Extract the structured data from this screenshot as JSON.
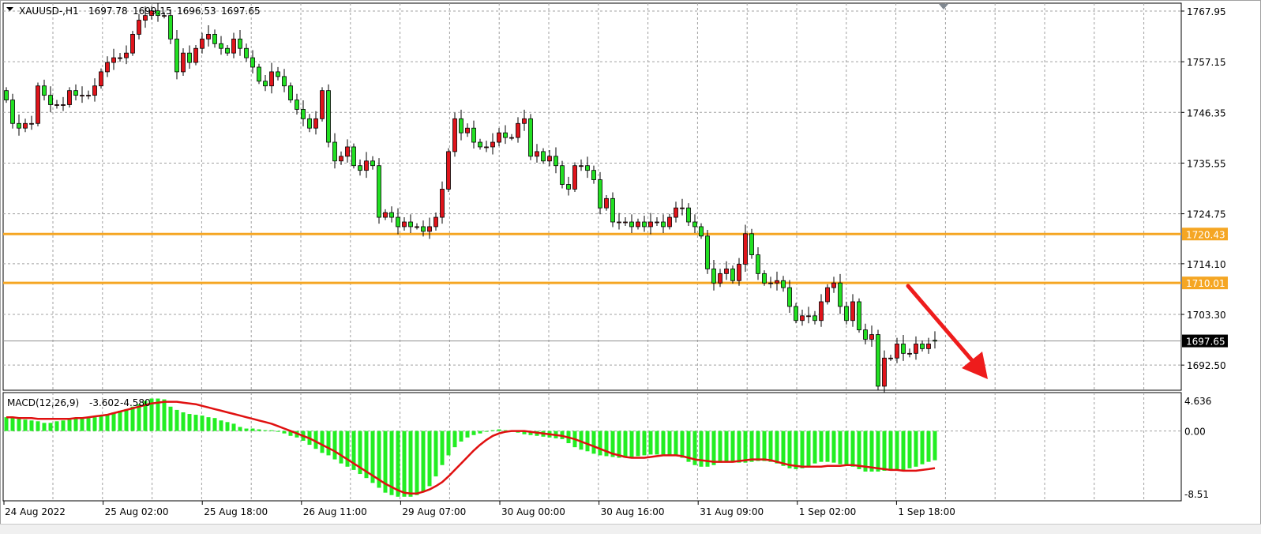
{
  "header": {
    "symbol": "XAUUSD-,H1",
    "open": "1697.78",
    "high": "1699.15",
    "low": "1696.53",
    "close": "1697.65"
  },
  "colors": {
    "bull_candle": "#e0141b",
    "bear_candle": "#22e022",
    "level_line": "#f5a623",
    "macd_histogram": "#22ee22",
    "macd_signal": "#e01010",
    "arrow": "#ee1c1c",
    "current_price_bg": "#000000"
  },
  "chart_data": [
    {
      "type": "candlestick",
      "title": "XAUUSD-,H1",
      "x_tick_labels": [
        "24 Aug 2022",
        "25 Aug 02:00",
        "25 Aug 18:00",
        "26 Aug 11:00",
        "29 Aug 07:00",
        "30 Aug 00:00",
        "30 Aug 16:00",
        "31 Aug 09:00",
        "1 Sep 02:00",
        "1 Sep 18:00"
      ],
      "y_tick_labels": [
        "1767.95",
        "1757.15",
        "1746.35",
        "1735.55",
        "1724.75",
        "1714.10",
        "1703.30",
        "1692.50"
      ],
      "ylim": [
        1691.5,
        1769.0
      ],
      "grid": true,
      "horizontal_levels": [
        {
          "value": 1720.43,
          "label": "1720.43"
        },
        {
          "value": 1710.01,
          "label": "1710.01"
        }
      ],
      "current_price": {
        "value": 1697.65,
        "label": "1697.65"
      },
      "annotation": "arrow-down",
      "open": [
        1751,
        1749,
        1744,
        1743,
        1744,
        1744,
        1752,
        1750,
        1748,
        1748,
        1748,
        1751,
        1750,
        1750,
        1750,
        1752,
        1755,
        1757,
        1758,
        1758,
        1759,
        1763,
        1766,
        1767,
        1768,
        1767,
        1767,
        1762,
        1755,
        1759,
        1757,
        1760,
        1762,
        1763,
        1761,
        1760,
        1759,
        1762,
        1760,
        1758,
        1756,
        1753,
        1752,
        1755,
        1754,
        1752,
        1749,
        1747,
        1745,
        1743,
        1745,
        1751,
        1740,
        1736,
        1737,
        1739,
        1735,
        1734,
        1736,
        1735,
        1724,
        1725,
        1724,
        1722,
        1723,
        1722,
        1722,
        1721,
        1722,
        1724,
        1730,
        1738,
        1745,
        1742,
        1743,
        1740,
        1739,
        1739,
        1740,
        1742,
        1741,
        1741,
        1744,
        1745,
        1737,
        1738,
        1736,
        1737,
        1735,
        1731,
        1730,
        1735,
        1735,
        1734,
        1732,
        1726,
        1728,
        1723,
        1723,
        1723,
        1722,
        1723,
        1722,
        1723,
        1723,
        1722,
        1724,
        1726,
        1726,
        1723,
        1722,
        1720,
        1713,
        1710,
        1712,
        1713,
        1710.5,
        1714,
        1720.5,
        1716,
        1712,
        1710,
        1710,
        1710.5,
        1709,
        1705,
        1702,
        1703,
        1703,
        1702,
        1706,
        1709,
        1710,
        1705,
        1702,
        1706,
        1700,
        1698,
        1699,
        1688,
        1694,
        1694,
        1697,
        1695,
        1695,
        1697,
        1696,
        1697.78
      ],
      "close": [
        1749,
        1744,
        1743,
        1744,
        1744,
        1752,
        1750,
        1748,
        1748,
        1748,
        1751,
        1750,
        1750,
        1750,
        1752,
        1755,
        1757,
        1758,
        1758,
        1759,
        1763,
        1766,
        1767,
        1768,
        1767,
        1767,
        1762,
        1755,
        1759,
        1757,
        1760,
        1762,
        1763,
        1761,
        1760,
        1759,
        1762,
        1760,
        1758,
        1756,
        1753,
        1752,
        1755,
        1754,
        1752,
        1749,
        1747,
        1745,
        1743,
        1745,
        1751,
        1740,
        1736,
        1737,
        1739,
        1735,
        1734,
        1736,
        1735,
        1724,
        1725,
        1724,
        1722,
        1723,
        1722,
        1722,
        1721,
        1722,
        1724,
        1730,
        1738,
        1745,
        1742,
        1743,
        1740,
        1739,
        1739,
        1740,
        1742,
        1741,
        1741,
        1744,
        1745,
        1737,
        1738,
        1736,
        1737,
        1735,
        1731,
        1730,
        1735,
        1735,
        1734,
        1732,
        1726,
        1728,
        1723,
        1723,
        1723,
        1722,
        1723,
        1722,
        1723,
        1723,
        1722,
        1724,
        1726,
        1726,
        1723,
        1722,
        1720,
        1713,
        1710,
        1712,
        1713,
        1710.5,
        1714,
        1720.5,
        1716,
        1712,
        1710,
        1710,
        1710.5,
        1709,
        1705,
        1702,
        1703,
        1703,
        1702,
        1706,
        1709,
        1710,
        1705,
        1702,
        1706,
        1700,
        1698,
        1699,
        1688,
        1694,
        1694,
        1697,
        1695,
        1695,
        1697,
        1696,
        1697,
        1697.65
      ]
    },
    {
      "type": "bar+line",
      "title": "MACD(12,26,9)",
      "main_value": "-3.602",
      "signal_value": "-4.580",
      "y_tick_labels": [
        "4.636",
        "0.00",
        "-8.51"
      ],
      "ylim": [
        -8.51,
        4.636
      ],
      "histogram": [
        1.7,
        1.6,
        1.5,
        1.4,
        1.3,
        1.2,
        1.0,
        1.0,
        1.2,
        1.3,
        1.4,
        1.5,
        1.5,
        1.6,
        1.7,
        1.9,
        2.1,
        2.3,
        2.5,
        2.7,
        3.0,
        3.3,
        3.7,
        4.0,
        4.0,
        3.9,
        3.0,
        2.6,
        2.3,
        2.1,
        2.0,
        1.9,
        1.7,
        1.6,
        1.3,
        1.1,
        0.9,
        0.5,
        0.3,
        0.3,
        0.2,
        0.1,
        0.1,
        -0.1,
        -0.3,
        -0.6,
        -0.8,
        -1.2,
        -1.7,
        -2.2,
        -2.7,
        -3.0,
        -3.5,
        -4.0,
        -4.4,
        -4.8,
        -5.3,
        -5.8,
        -6.4,
        -7.0,
        -7.6,
        -7.9,
        -8.1,
        -8.1,
        -8.1,
        -7.9,
        -7.5,
        -6.8,
        -5.6,
        -4.2,
        -3.0,
        -2.0,
        -1.3,
        -0.8,
        -0.5,
        -0.3,
        -0.1,
        0.1,
        0.2,
        0.1,
        0.0,
        -0.2,
        -0.4,
        -0.5,
        -0.6,
        -0.7,
        -0.8,
        -0.9,
        -1.0,
        -1.5,
        -2.0,
        -2.3,
        -2.5,
        -2.8,
        -3.0,
        -3.1,
        -3.2,
        -3.3,
        -3.3,
        -3.2,
        -3.1,
        -3.0,
        -2.9,
        -2.9,
        -2.9,
        -3.0,
        -3.1,
        -3.3,
        -3.8,
        -4.2,
        -4.4,
        -4.4,
        -4.2,
        -3.9,
        -3.8,
        -3.8,
        -3.9,
        -3.9,
        -3.8,
        -3.7,
        -3.7,
        -3.8,
        -4.0,
        -4.3,
        -4.6,
        -4.7,
        -4.6,
        -4.3,
        -4.0,
        -3.8,
        -3.8,
        -3.9,
        -4.1,
        -4.2,
        -4.4,
        -4.7,
        -5.0,
        -5.0,
        -5.0,
        -4.9,
        -4.9,
        -4.9,
        -4.8,
        -4.6,
        -4.4,
        -4.1,
        -3.8,
        -3.602
      ],
      "signal": [
        1.7,
        1.7,
        1.6,
        1.6,
        1.6,
        1.5,
        1.5,
        1.5,
        1.5,
        1.5,
        1.5,
        1.6,
        1.6,
        1.7,
        1.8,
        1.9,
        2.0,
        2.2,
        2.4,
        2.6,
        2.8,
        3.0,
        3.2,
        3.4,
        3.5,
        3.6,
        3.6,
        3.6,
        3.5,
        3.4,
        3.3,
        3.1,
        2.9,
        2.7,
        2.5,
        2.3,
        2.1,
        1.9,
        1.7,
        1.5,
        1.3,
        1.1,
        0.9,
        0.6,
        0.3,
        0.0,
        -0.3,
        -0.6,
        -0.9,
        -1.3,
        -1.7,
        -2.1,
        -2.5,
        -3.0,
        -3.5,
        -4.0,
        -4.5,
        -5.0,
        -5.5,
        -6.0,
        -6.5,
        -6.9,
        -7.3,
        -7.6,
        -7.7,
        -7.7,
        -7.5,
        -7.2,
        -6.8,
        -6.3,
        -5.6,
        -4.8,
        -4.0,
        -3.2,
        -2.4,
        -1.7,
        -1.1,
        -0.6,
        -0.3,
        -0.1,
        0.0,
        0.0,
        0.0,
        -0.1,
        -0.2,
        -0.3,
        -0.4,
        -0.5,
        -0.6,
        -0.8,
        -1.0,
        -1.3,
        -1.6,
        -1.9,
        -2.2,
        -2.5,
        -2.8,
        -3.0,
        -3.2,
        -3.3,
        -3.3,
        -3.3,
        -3.2,
        -3.1,
        -3.0,
        -3.0,
        -3.0,
        -3.1,
        -3.3,
        -3.5,
        -3.6,
        -3.7,
        -3.8,
        -3.8,
        -3.8,
        -3.8,
        -3.7,
        -3.6,
        -3.5,
        -3.5,
        -3.5,
        -3.6,
        -3.8,
        -4.0,
        -4.2,
        -4.3,
        -4.4,
        -4.4,
        -4.4,
        -4.4,
        -4.3,
        -4.3,
        -4.3,
        -4.2,
        -4.2,
        -4.3,
        -4.4,
        -4.5,
        -4.6,
        -4.7,
        -4.8,
        -4.8,
        -4.9,
        -4.9,
        -4.9,
        -4.8,
        -4.7,
        -4.58
      ]
    }
  ]
}
